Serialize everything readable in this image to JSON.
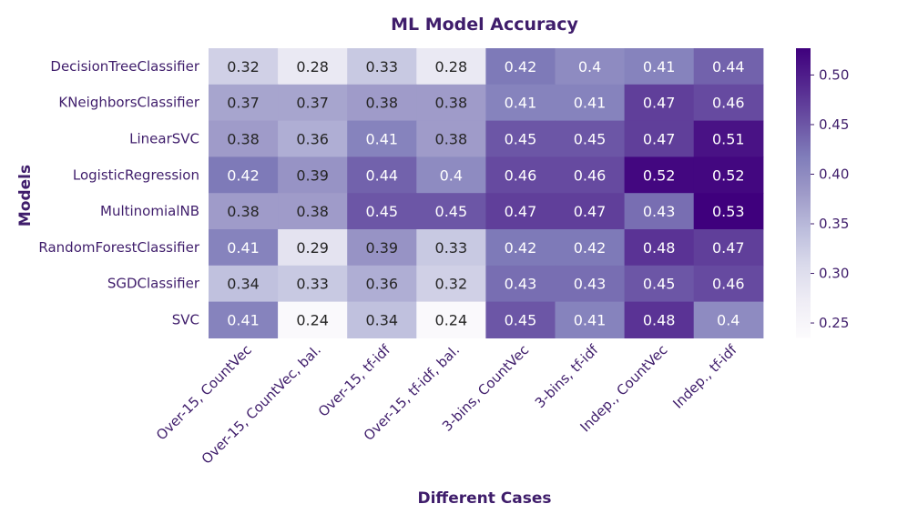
{
  "chart_data": {
    "type": "heatmap",
    "title": "ML Model Accuracy",
    "xlabel": "Different Cases",
    "ylabel": "Models",
    "columns": [
      "Over-15, CountVec",
      "Over-15, CountVec, bal.",
      "Over-15, tf-idf",
      "Over-15, tf-idf, bal.",
      "3-bins, CountVec",
      "3-bins, tf-idf",
      "Indep., CountVec",
      "Indep., tf-idf"
    ],
    "rows": [
      "DecisionTreeClassifier",
      "KNeighborsClassifier",
      "LinearSVC",
      "LogisticRegression",
      "MultinomialNB",
      "RandomForestClassifier",
      "SGDClassifier",
      "SVC"
    ],
    "values": [
      [
        0.32,
        0.28,
        0.33,
        0.28,
        0.42,
        0.4,
        0.41,
        0.44
      ],
      [
        0.37,
        0.37,
        0.38,
        0.38,
        0.41,
        0.41,
        0.47,
        0.46
      ],
      [
        0.38,
        0.36,
        0.41,
        0.38,
        0.45,
        0.45,
        0.47,
        0.51
      ],
      [
        0.42,
        0.39,
        0.44,
        0.4,
        0.46,
        0.46,
        0.52,
        0.52
      ],
      [
        0.38,
        0.38,
        0.45,
        0.45,
        0.47,
        0.47,
        0.43,
        0.53
      ],
      [
        0.41,
        0.29,
        0.39,
        0.33,
        0.42,
        0.42,
        0.48,
        0.47
      ],
      [
        0.34,
        0.33,
        0.36,
        0.32,
        0.43,
        0.43,
        0.45,
        0.46
      ],
      [
        0.41,
        0.24,
        0.34,
        0.24,
        0.45,
        0.41,
        0.48,
        0.4
      ]
    ],
    "cell_labels": [
      [
        "0.32",
        "0.28",
        "0.33",
        "0.28",
        "0.42",
        "0.4",
        "0.41",
        "0.44"
      ],
      [
        "0.37",
        "0.37",
        "0.38",
        "0.38",
        "0.41",
        "0.41",
        "0.47",
        "0.46"
      ],
      [
        "0.38",
        "0.36",
        "0.41",
        "0.38",
        "0.45",
        "0.45",
        "0.47",
        "0.51"
      ],
      [
        "0.42",
        "0.39",
        "0.44",
        "0.4",
        "0.46",
        "0.46",
        "0.52",
        "0.52"
      ],
      [
        "0.38",
        "0.38",
        "0.45",
        "0.45",
        "0.47",
        "0.47",
        "0.43",
        "0.53"
      ],
      [
        "0.41",
        "0.29",
        "0.39",
        "0.33",
        "0.42",
        "0.42",
        "0.48",
        "0.47"
      ],
      [
        "0.34",
        "0.33",
        "0.36",
        "0.32",
        "0.43",
        "0.43",
        "0.45",
        "0.46"
      ],
      [
        "0.41",
        "0.24",
        "0.34",
        "0.24",
        "0.45",
        "0.41",
        "0.48",
        "0.4"
      ]
    ],
    "colormap": "Purples",
    "vmin": 0.235,
    "vmax": 0.527,
    "colorbar_ticks": [
      "0.25",
      "0.30",
      "0.35",
      "0.40",
      "0.45",
      "0.50"
    ],
    "colorbar_tick_values": [
      0.25,
      0.3,
      0.35,
      0.4,
      0.45,
      0.5
    ],
    "colors": {
      "text": "#3f1d6b",
      "colormap_stops": [
        "#fcfbfd",
        "#efedf5",
        "#dadaeb",
        "#bcbddc",
        "#9e9ac8",
        "#807dba",
        "#6a51a3",
        "#54278f",
        "#3f007d"
      ]
    }
  }
}
